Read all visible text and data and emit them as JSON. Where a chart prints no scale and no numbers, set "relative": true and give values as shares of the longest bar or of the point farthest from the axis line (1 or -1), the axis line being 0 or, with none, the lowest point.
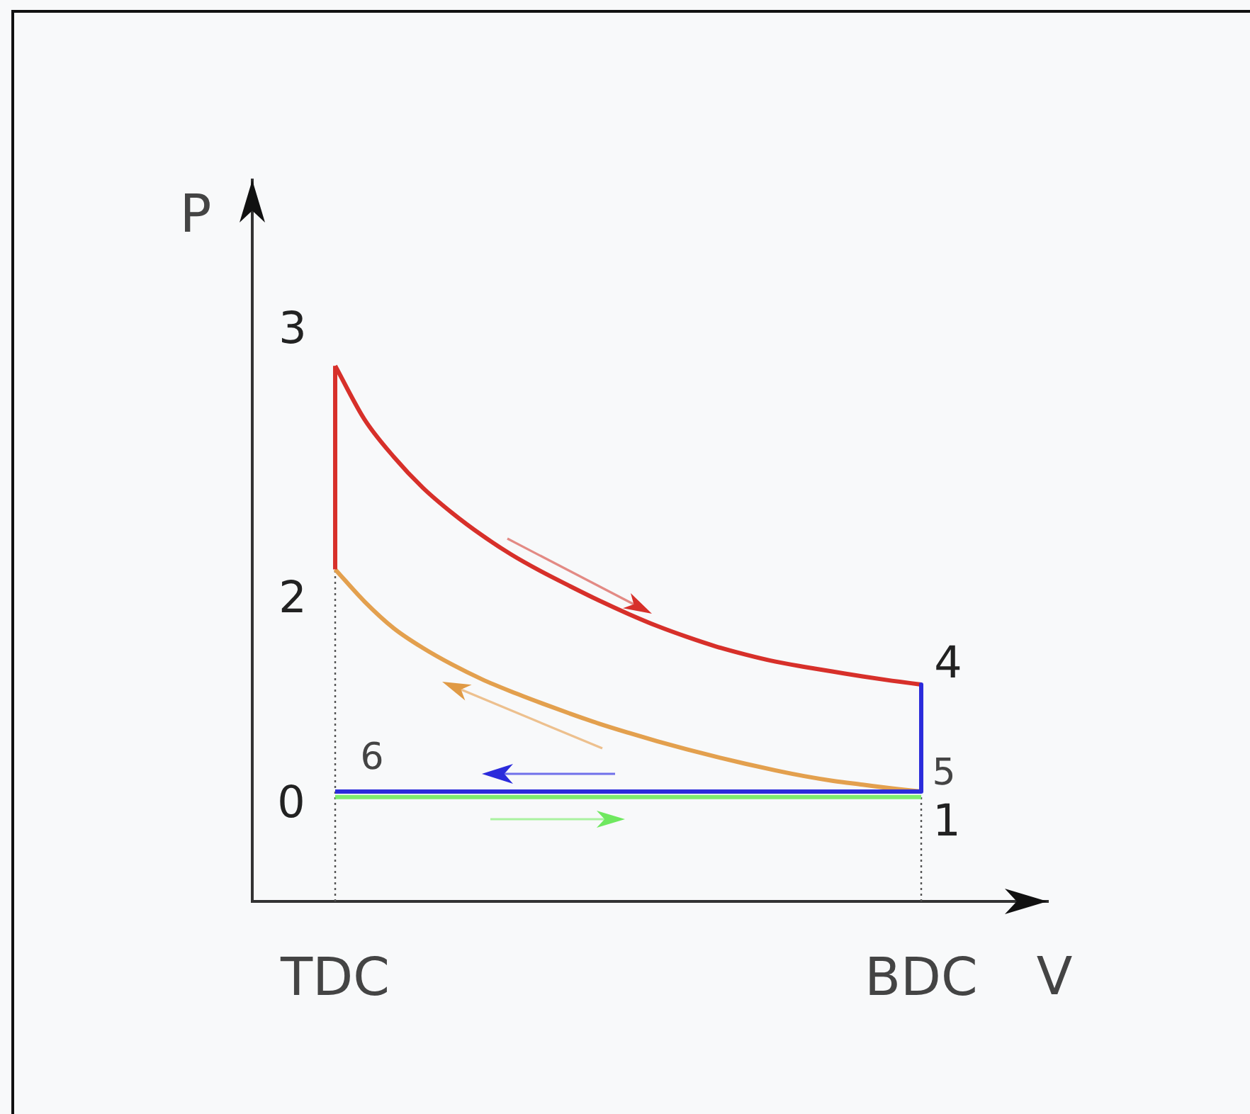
{
  "chart_data": {
    "type": "line",
    "relative": true,
    "xlabel": "V",
    "ylabel": "P",
    "categories": [
      "TDC",
      null,
      null,
      null,
      null,
      null,
      null,
      null,
      null,
      null,
      null,
      null,
      null,
      null,
      null,
      null,
      null,
      null,
      null,
      null,
      "BDC"
    ],
    "tick_labels": "x",
    "grid": false,
    "legend": false,
    "marker": "none",
    "line_style": "solid",
    "series": [
      {
        "color": "#555555",
        "line_style": "dotted",
        "x": [
          "TDC",
          "TDC"
        ],
        "values": [
          0,
          0.62
        ]
      },
      {
        "color": "#555555",
        "line_style": "dotted",
        "x": [
          "BDC",
          "BDC"
        ],
        "values": [
          0,
          0.195
        ]
      },
      {
        "color": "#7fec6f",
        "x": [
          "TDC",
          "BDC"
        ],
        "values": [
          0.195,
          0.195
        ]
      },
      {
        "color": "#e3a04e",
        "values": [
          0.62,
          0.56,
          0.51,
          0.473,
          0.442,
          0.415,
          0.392,
          0.371,
          0.351,
          0.332,
          0.315,
          0.299,
          0.284,
          0.27,
          0.257,
          0.245,
          0.234,
          0.225,
          0.218,
          0.211,
          0.205
        ]
      },
      {
        "color": "#d7302a",
        "x": [
          "TDC",
          "TDC"
        ],
        "values": [
          0.62,
          1
        ]
      },
      {
        "color": "#d7302a",
        "values": [
          1,
          0.9,
          0.83,
          0.772,
          0.725,
          0.684,
          0.648,
          0.617,
          0.589,
          0.562,
          0.537,
          0.514,
          0.494,
          0.476,
          0.461,
          0.448,
          0.438,
          0.429,
          0.42,
          0.412,
          0.405
        ]
      },
      {
        "color": "#2b2bdb",
        "x": [
          "BDC",
          "BDC",
          "TDC"
        ],
        "values": [
          0.405,
          0.205,
          0.205
        ]
      }
    ],
    "annotations": [
      {
        "text": "0",
        "x": "TDC",
        "y": 0.195
      },
      {
        "text": "1",
        "x": "BDC",
        "y": 0.195
      },
      {
        "text": "2",
        "x": "TDC",
        "y": 0.62
      },
      {
        "text": "3",
        "x": "TDC",
        "y": 1
      },
      {
        "text": "4",
        "x": "BDC",
        "y": 0.405
      },
      {
        "text": "5",
        "x": "BDC",
        "y": 0.205
      },
      {
        "text": "6",
        "x": "TDC",
        "y": 0.205
      }
    ]
  }
}
